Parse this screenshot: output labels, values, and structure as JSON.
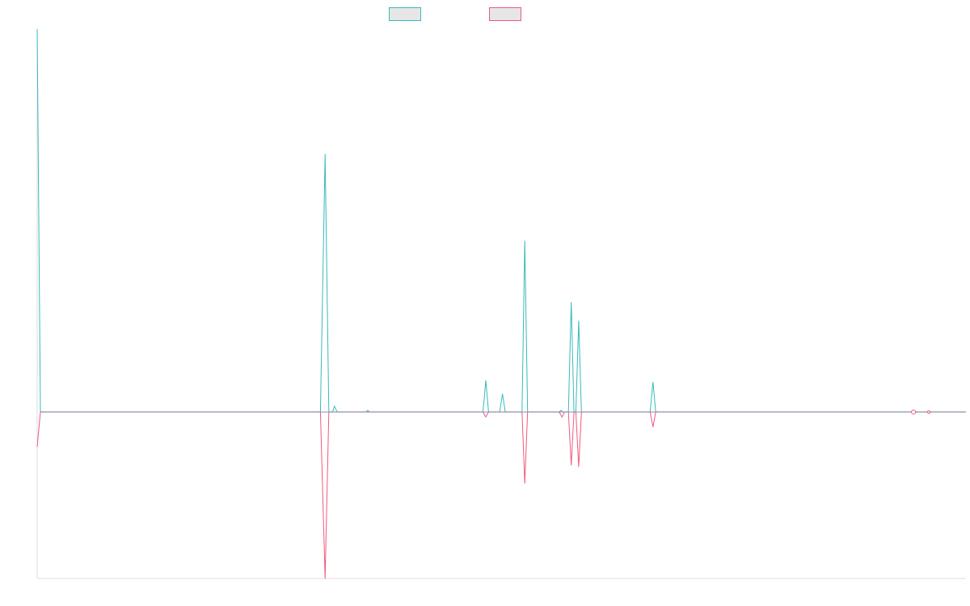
{
  "chart_data": {
    "type": "line",
    "title": "",
    "xlabel": "",
    "ylabel": "",
    "grid": false,
    "legend_position": "top-center",
    "xlim": [
      0,
      1000
    ],
    "ylim": [
      -100,
      230
    ],
    "series": [
      {
        "color": "#3bb8bd",
        "fill": "#e6e6e6",
        "points": [
          [
            0,
            230
          ],
          [
            3.5,
            0
          ],
          [
            305,
            0
          ],
          [
            310,
            155
          ],
          [
            314,
            0
          ],
          [
            318,
            0
          ],
          [
            320,
            3.5
          ],
          [
            323,
            0
          ],
          [
            354,
            0
          ],
          [
            356,
            1
          ],
          [
            358,
            0
          ],
          [
            480,
            0
          ],
          [
            483,
            19
          ],
          [
            486,
            0
          ],
          [
            498,
            0
          ],
          [
            501,
            11
          ],
          [
            504,
            0
          ],
          [
            522,
            0
          ],
          [
            525,
            103
          ],
          [
            528,
            0
          ],
          [
            562,
            0
          ],
          [
            564,
            1
          ],
          [
            566,
            0
          ],
          [
            572,
            0
          ],
          [
            575,
            66
          ],
          [
            578,
            0
          ],
          [
            580,
            0
          ],
          [
            583,
            55
          ],
          [
            586,
            0
          ],
          [
            660,
            0
          ],
          [
            663,
            18
          ],
          [
            666,
            0
          ],
          [
            943,
            0
          ],
          [
            945,
            0.5
          ],
          [
            947,
            0
          ],
          [
            1000,
            0
          ]
        ]
      },
      {
        "color": "#f0597f",
        "fill": "#e6e6e6",
        "points": [
          [
            0,
            -21
          ],
          [
            3.5,
            0
          ],
          [
            305,
            0
          ],
          [
            310,
            -100
          ],
          [
            314,
            0
          ],
          [
            480,
            0
          ],
          [
            483,
            -3
          ],
          [
            486,
            0
          ],
          [
            522,
            0
          ],
          [
            525,
            -43
          ],
          [
            528,
            0
          ],
          [
            562,
            0
          ],
          [
            565,
            -3
          ],
          [
            568,
            0
          ],
          [
            572,
            0
          ],
          [
            575,
            -32
          ],
          [
            578,
            0
          ],
          [
            580,
            0
          ],
          [
            583,
            -33
          ],
          [
            586,
            0
          ],
          [
            660,
            0
          ],
          [
            663,
            -9
          ],
          [
            666,
            0
          ],
          [
            943,
            0
          ],
          [
            945,
            -0.5
          ],
          [
            947,
            0
          ],
          [
            1000,
            0
          ]
        ]
      }
    ]
  }
}
